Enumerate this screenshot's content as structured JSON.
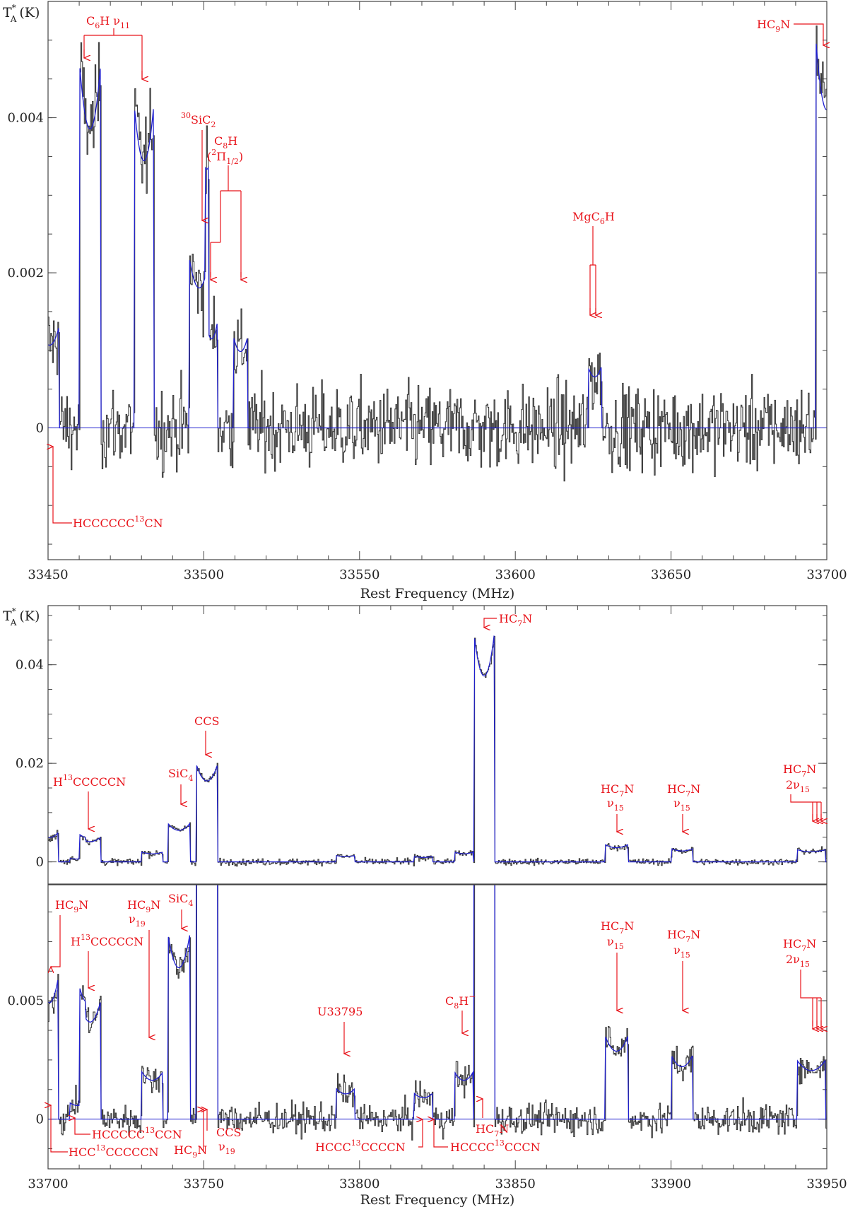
{
  "colors": {
    "observed": "#3a3a3a",
    "model": "#1f1fd0",
    "annotation": "#e8141b",
    "frame": "#444444"
  },
  "chart_data": [
    {
      "type": "line",
      "panel": "top",
      "xlabel": "Rest Frequency (MHz)",
      "ylabel": "T*A (K)",
      "xlim": [
        33450,
        33700
      ],
      "ylim": [
        -0.0017,
        0.0055
      ],
      "xticks": [
        33450,
        33500,
        33550,
        33600,
        33650,
        33700
      ],
      "yticks": [
        0,
        0.002,
        0.004
      ],
      "ytick_labels": [
        "0",
        "0.002",
        "0.004"
      ],
      "noise_rms": 0.00038,
      "model_lines": [
        {
          "center": 33463.5,
          "amp": 0.0047,
          "width": 3.4
        },
        {
          "center": 33480.8,
          "amp": 0.0042,
          "width": 3.2
        },
        {
          "center": 33450.5,
          "amp": 0.0013,
          "width": 3.0
        },
        {
          "center": 33498.5,
          "amp": 0.0022,
          "width": 3.2
        },
        {
          "center": 33502.5,
          "amp": 0.0014,
          "width": 2.0
        },
        {
          "center": 33511.8,
          "amp": 0.0012,
          "width": 2.4
        },
        {
          "center": 33625.5,
          "amp": 0.0008,
          "width": 2.2
        },
        {
          "center": 33700.0,
          "amp": 0.005,
          "width": 3.5
        }
      ],
      "annotations": [
        {
          "label": "HCCCCCC",
          "sup": "13",
          "suffix": "CN",
          "freq": 33451.5
        },
        {
          "label": "C6H ν11",
          "freqs": [
            33462.5,
            33480.5
          ]
        },
        {
          "label": "30SiC2",
          "freq": 33500.2
        },
        {
          "label": "C8H",
          "state": "(2Π1/2)",
          "freqs": [
            33502.8,
            33512.0
          ]
        },
        {
          "label": "MgC6H",
          "freqs": [
            33625.2,
            33626.3
          ]
        },
        {
          "label": "HC9N",
          "freq": 33699.3
        }
      ]
    },
    {
      "type": "line",
      "panel": "middle",
      "ylabel": "T*A (K)",
      "xlim": [
        33700,
        33950
      ],
      "ylim": [
        -0.0045,
        0.052
      ],
      "yticks": [
        0,
        0.02,
        0.04
      ],
      "ytick_labels": [
        "0",
        "0.02",
        "0.04"
      ],
      "noise_rms": 0.00045,
      "annotations": [
        {
          "label": "H13CCCCCN",
          "freq": 33713.5
        },
        {
          "label": "SiC4",
          "freq": 33742.0
        },
        {
          "label": "CCS",
          "freq": 33751.0
        },
        {
          "label": "HC7N",
          "freq": 33840.0
        },
        {
          "label": "HC7N ν15",
          "freq": 33882.5
        },
        {
          "label": "HC7N ν15",
          "freq": 33903.5
        },
        {
          "label": "HC7N 2ν15",
          "freqs": [
            33943.5,
            33945.0,
            33946.5
          ]
        }
      ]
    },
    {
      "type": "line",
      "panel": "bottom",
      "xlabel": "Rest Frequency (MHz)",
      "xlim": [
        33700,
        33950
      ],
      "ylim": [
        -0.0021,
        0.0099
      ],
      "xticks": [
        33700,
        33750,
        33800,
        33850,
        33900,
        33950
      ],
      "yticks": [
        0,
        0.005
      ],
      "ytick_labels": [
        "0",
        "0.005"
      ],
      "noise_rms": 0.00045,
      "model_lines": [
        {
          "center": 33700.5,
          "amp": 0.006,
          "width": 2.8
        },
        {
          "center": 33713.5,
          "amp": 0.005,
          "width": 3.4
        },
        {
          "center": 33733.5,
          "amp": 0.002,
          "width": 3.4
        },
        {
          "center": 33742.0,
          "amp": 0.0078,
          "width": 3.5
        },
        {
          "center": 33751.0,
          "amp": 0.02,
          "width": 3.5
        },
        {
          "center": 33795.5,
          "amp": 0.0013,
          "width": 3.0
        },
        {
          "center": 33820.5,
          "amp": 0.0011,
          "width": 3.0
        },
        {
          "center": 33833.5,
          "amp": 0.002,
          "width": 3.0
        },
        {
          "center": 33840.0,
          "amp": 0.046,
          "width": 3.2
        },
        {
          "center": 33882.5,
          "amp": 0.0035,
          "width": 3.6
        },
        {
          "center": 33903.5,
          "amp": 0.0027,
          "width": 3.4
        },
        {
          "center": 33945.0,
          "amp": 0.0025,
          "width": 4.6
        },
        {
          "center": 33709.5,
          "amp": 0.0007,
          "width": 2.6
        }
      ],
      "annotations": [
        {
          "label": "HC9N",
          "freq": 33700.8
        },
        {
          "label": "H13CCCCCN",
          "freq": 33713.5
        },
        {
          "label": "HC9N ν19",
          "freq": 33733.3
        },
        {
          "label": "SiC4",
          "freq": 33742.2
        },
        {
          "label": "U33795",
          "freq": 33795.0
        },
        {
          "label": "C8H−",
          "freq": 33833.0
        },
        {
          "label": "HC7N ν15",
          "freq": 33882.5
        },
        {
          "label": "HC7N ν15",
          "freq": 33903.5
        },
        {
          "label": "HC7N 2ν15",
          "freqs": [
            33943.5,
            33945.0,
            33946.5
          ]
        },
        {
          "label": "HCC13CCCCCN",
          "freq": 33700.5
        },
        {
          "label": "HCCCCC13CCN",
          "freq": 33708.5
        },
        {
          "label": "HC9N",
          "freq": 33749.8
        },
        {
          "label": "CCS ν19",
          "freq": 33751.5
        },
        {
          "label": "HCCC13CCCCN",
          "freq": 33820.5
        },
        {
          "label": "HCCCC13CCCN",
          "freq": 33824.0
        },
        {
          "label": "HC7N",
          "freq": 33840.0
        }
      ]
    }
  ],
  "labels": {
    "xlabel_top": "Rest Frequency (MHz)",
    "xlabel_bottom": "Rest Frequency (MHz)",
    "ylabel_top": "T",
    "ylabel_mid": "T",
    "ylabel_sup": "*",
    "ylabel_sub": "A",
    "ylabel_unit": "(K)",
    "a_hccccccc13cn_pre": "HCCCCCC",
    "a_hccccccc13cn_sup": "13",
    "a_hccccccc13cn_post": "CN",
    "a_c6h_pre": "C",
    "a_c6h_sub": "6",
    "a_c6h_post": "H  ν",
    "a_c6h_mode": "11",
    "a_sic2_sup": "30",
    "a_sic2_pre": "SiC",
    "a_sic2_sub": "2",
    "a_c8h_pre": "C",
    "a_c8h_sub": "8",
    "a_c8h_post": "H",
    "a_c8h_state_sup": "2",
    "a_c8h_state_pre": "(",
    "a_c8h_state_mid": "Π",
    "a_c8h_state_sub": "1/2",
    "a_c8h_state_post": ")",
    "a_mgc6h_pre": "MgC",
    "a_mgc6h_sub": "6",
    "a_mgc6h_post": "H",
    "a_hc9n_pre": "HC",
    "a_hc9n_sub": "9",
    "a_hc9n_post": "N",
    "a_hc7n_pre": "HC",
    "a_hc7n_sub": "7",
    "a_hc7n_post": "N",
    "a_h13_pre": "H",
    "a_h13_sup": "13",
    "a_h13_post": "CCCCCN",
    "a_sic4_pre": "SiC",
    "a_sic4_sub": "4",
    "a_ccs": "CCS",
    "a_nu": "ν",
    "a_nu15": "15",
    "a_nu19": "19",
    "a_2nu": "2ν",
    "a_u33795": "U33795",
    "a_c8hm_pre": "C",
    "a_c8hm_sub": "8",
    "a_c8hm_post": "H",
    "a_c8hm_sup": "−",
    "a_hcc13_pre": "HCC",
    "a_hcc13_sup": "13",
    "a_hcc13_post": "CCCCCN",
    "a_hccccc13_pre": "HCCCCC",
    "a_hccccc13_sup": "13",
    "a_hccccc13_post": "CCN",
    "a_hccc13_pre": "HCCC",
    "a_hccc13_sup": "13",
    "a_hccc13_post": "CCCCN",
    "a_hcccc13_pre": "HCCCC",
    "a_hcccc13_sup": "13",
    "a_hcccc13_post": "CCCN"
  }
}
